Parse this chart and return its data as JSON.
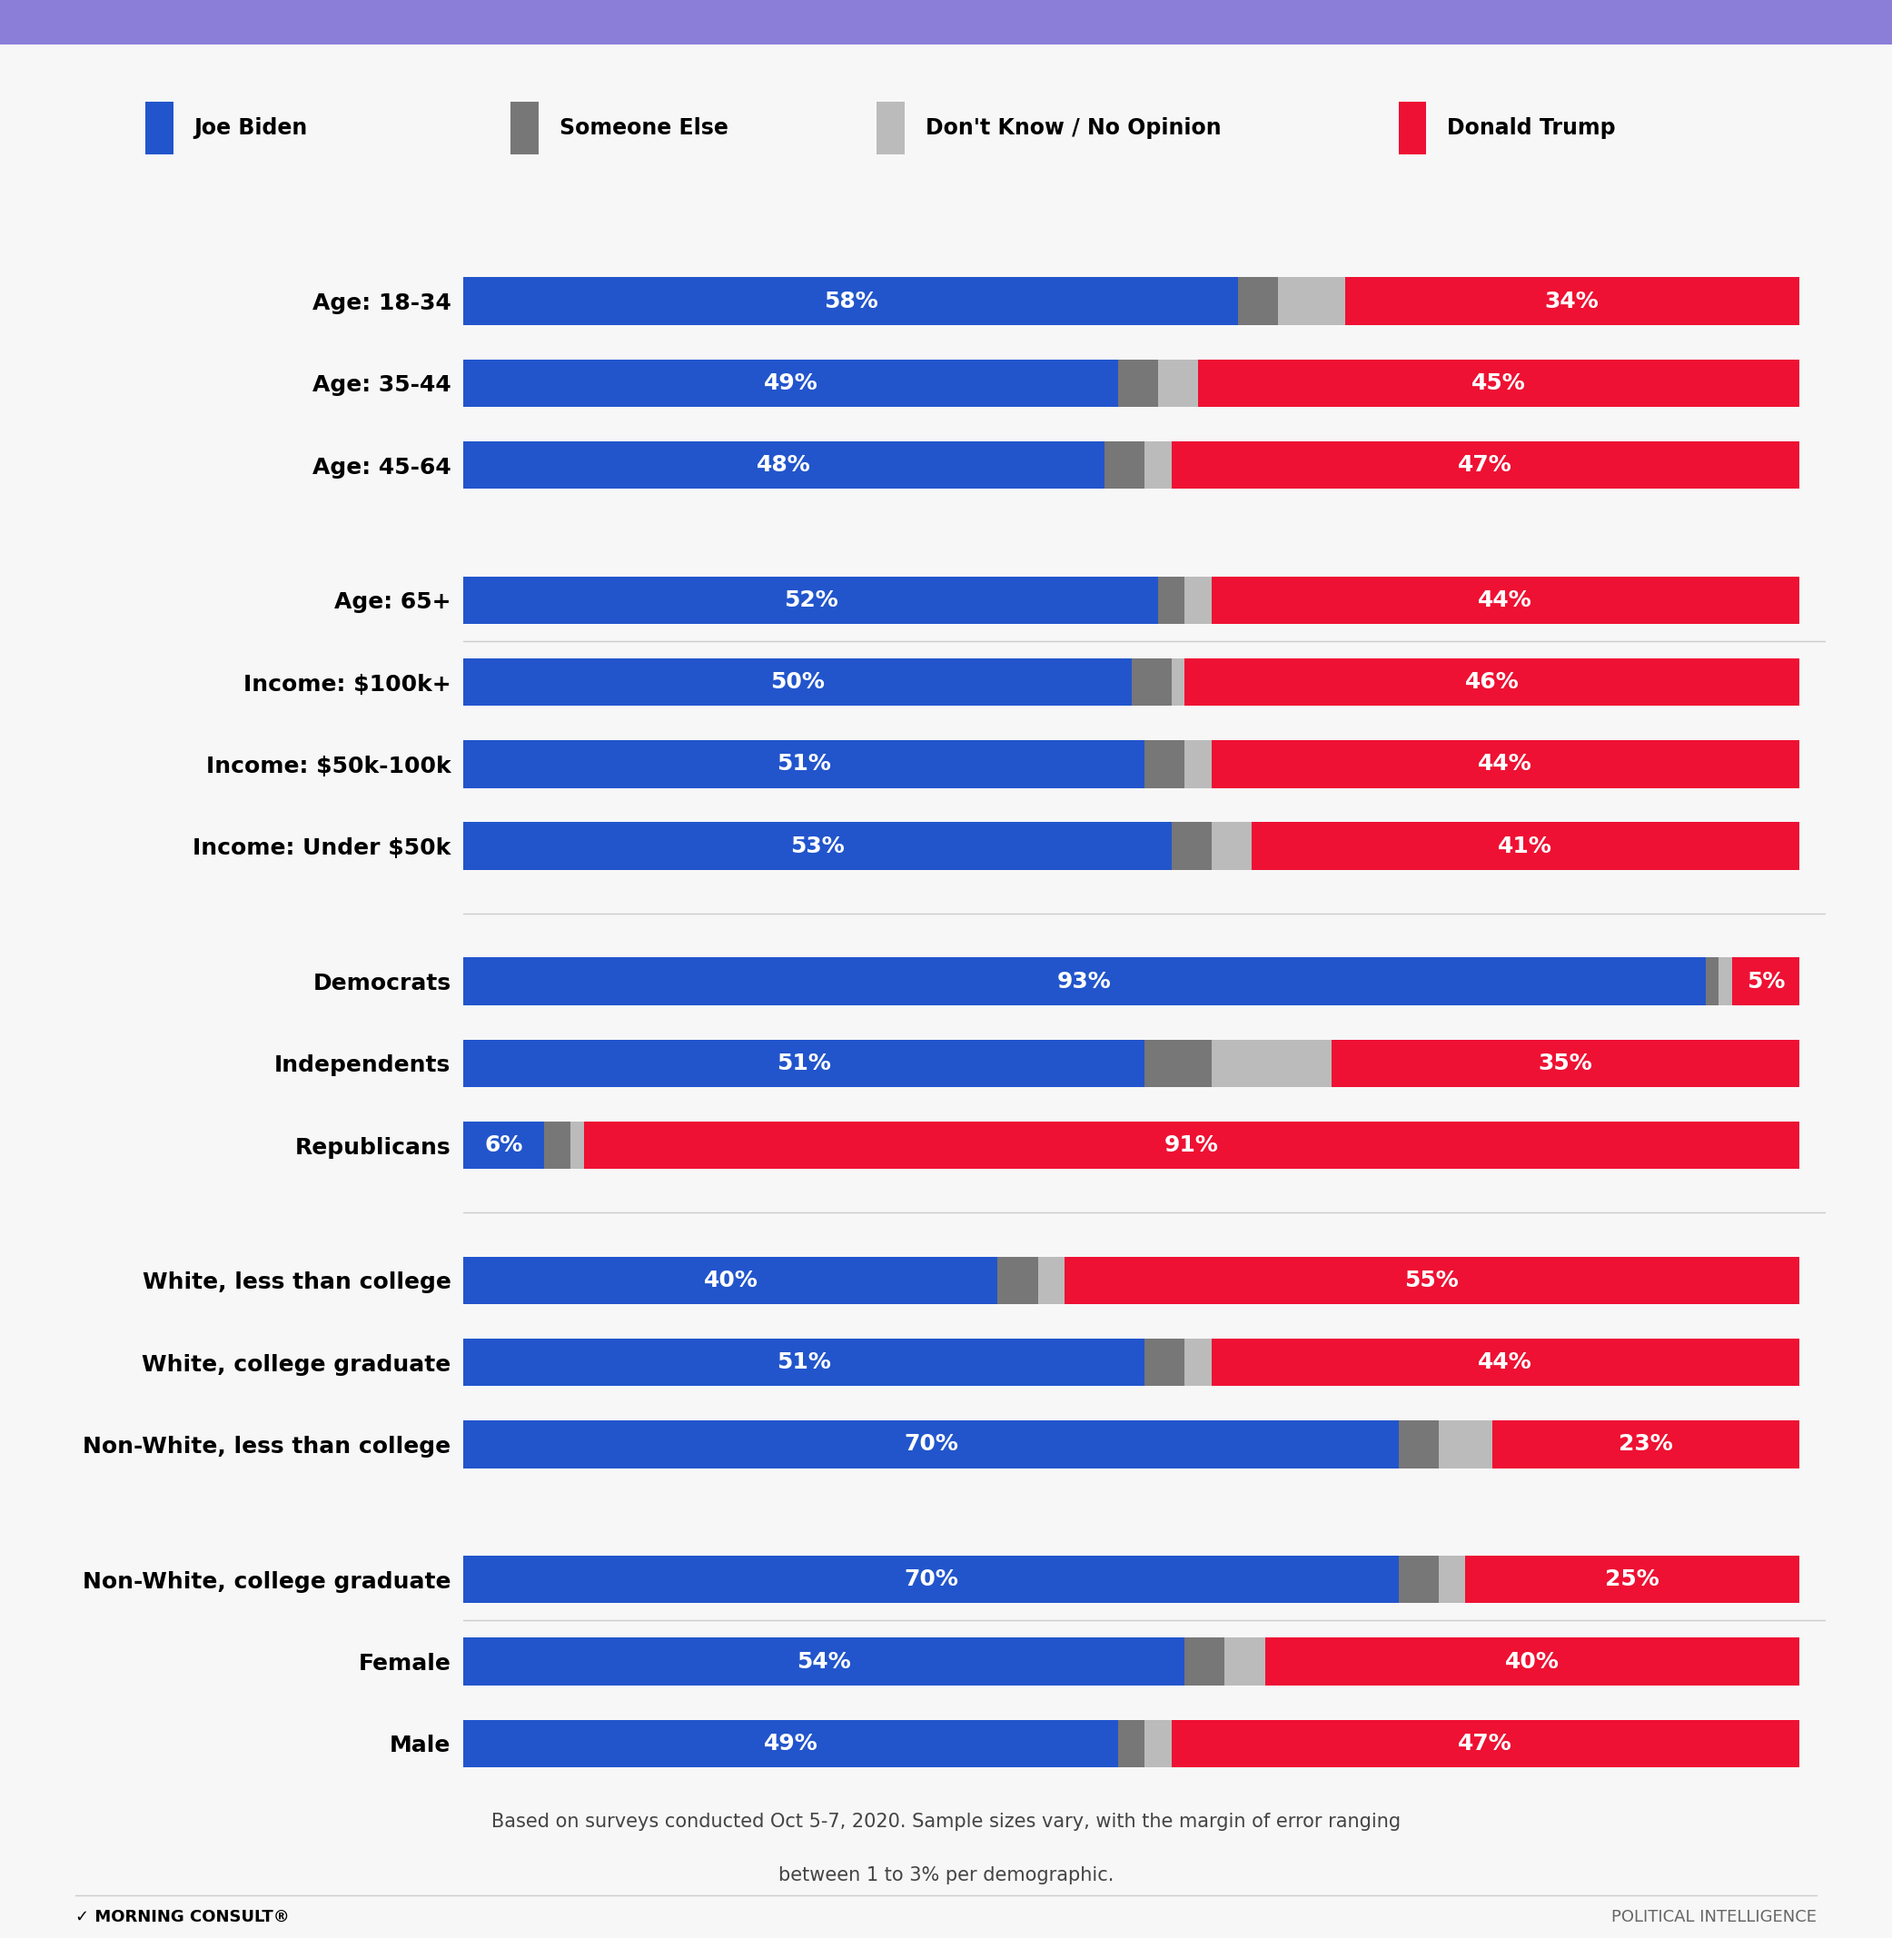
{
  "title_bar_color": "#8B7ED8",
  "background_color": "#F7F7F8",
  "biden_color": "#2255CC",
  "trump_color": "#EE1133",
  "someone_else_color": "#777777",
  "dont_know_color": "#BBBBBB",
  "bar_height": 0.58,
  "categories": [
    "Age: 18-34",
    "Age: 35-44",
    "Age: 45-64",
    "Age: 65+",
    "Income: $100k+",
    "Income: $50k-100k",
    "Income: Under $50k",
    "Democrats",
    "Independents",
    "Republicans",
    "White, less than college",
    "White, college graduate",
    "Non-White, less than college",
    "Non-White, college graduate",
    "Female",
    "Male"
  ],
  "biden": [
    58,
    49,
    48,
    52,
    50,
    51,
    53,
    93,
    51,
    6,
    40,
    51,
    70,
    70,
    54,
    49
  ],
  "someone_else": [
    3,
    3,
    3,
    2,
    3,
    3,
    3,
    1,
    5,
    2,
    3,
    3,
    3,
    3,
    3,
    2
  ],
  "dont_know": [
    5,
    3,
    2,
    2,
    1,
    2,
    3,
    1,
    9,
    1,
    2,
    2,
    4,
    2,
    3,
    2
  ],
  "trump": [
    34,
    45,
    47,
    44,
    46,
    44,
    41,
    5,
    35,
    91,
    55,
    44,
    23,
    25,
    40,
    47
  ],
  "group_separators": [
    3,
    6,
    9,
    13
  ],
  "footnote_line1": "Based on surveys conducted Oct 5-7, 2020. Sample sizes vary, with the margin of error ranging",
  "footnote_line2": "between 1 to 3% per demographic.",
  "logo_text": "MORNING CONSULT",
  "right_text": "POLITICAL INTELLIGENCE"
}
